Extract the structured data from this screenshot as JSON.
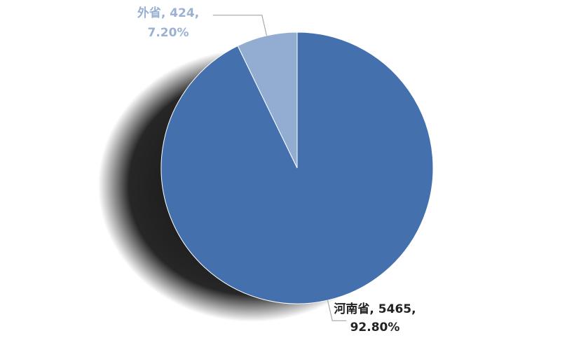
{
  "chart_data": {
    "type": "pie",
    "title": "",
    "slices": [
      {
        "category": "河南省",
        "value": 5465,
        "percent": "92.80%",
        "color": "#4471AE",
        "label_line1": "河南省, 5465,",
        "label_line2": "92.80%",
        "label_color": "#222222"
      },
      {
        "category": "外省",
        "value": 424,
        "percent": "7.20%",
        "color": "#93ACD2",
        "label_line1": "外省, 424,",
        "label_line2": "7.20%",
        "label_color": "#9BB1D3"
      }
    ],
    "legend": "none",
    "style": "3d-pie-with-shadow"
  }
}
